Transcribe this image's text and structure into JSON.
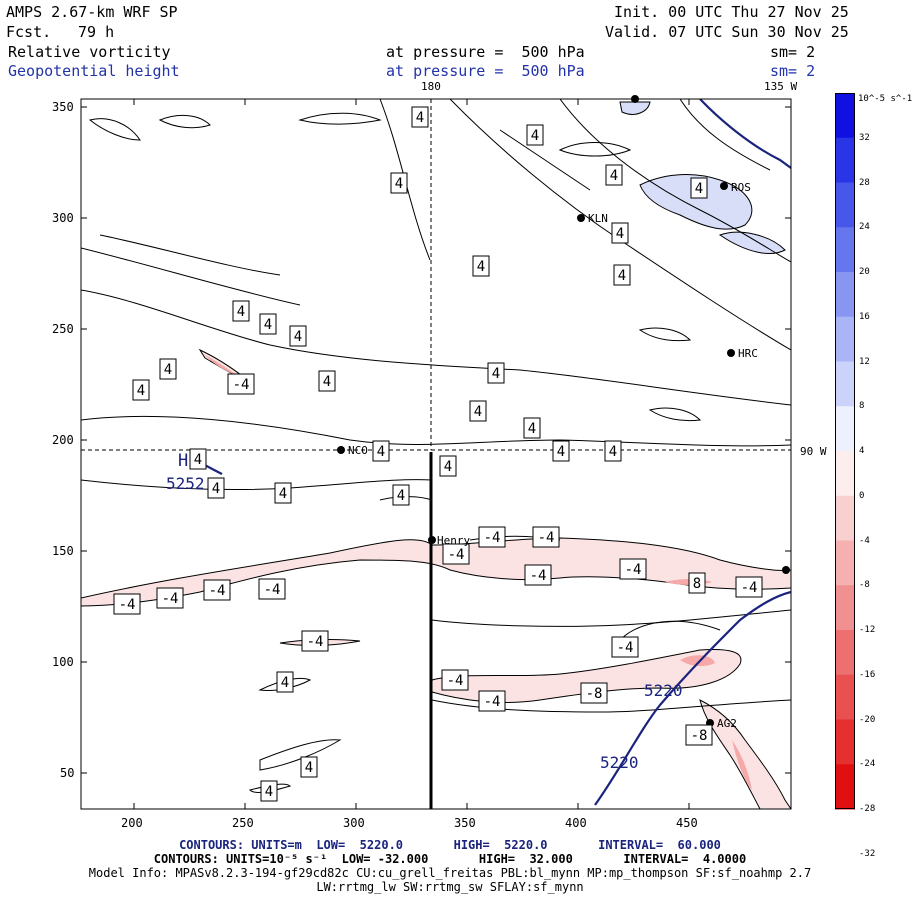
{
  "header": {
    "model": "AMPS 2.67-km WRF SP",
    "fcst_label": "Fcst.",
    "fcst_value": "79 h",
    "init": "Init. 00 UTC Thu 27 Nov 25",
    "valid": "Valid. 07 UTC Sun 30 Nov 25",
    "field1_name": "Relative vorticity",
    "field1_level": "at pressure =  500 hPa",
    "field1_sm": "sm= 2",
    "field2_name": "Geopotential height",
    "field2_level": "at pressure =  500 hPa",
    "field2_sm": "sm= 2"
  },
  "map": {
    "top_labels": [
      "180",
      "135 W"
    ],
    "right_label": "90 W",
    "x_ticks": [
      "200",
      "250",
      "300",
      "350",
      "400",
      "450"
    ],
    "y_ticks": [
      "350",
      "300",
      "250",
      "200",
      "150",
      "100",
      "50"
    ],
    "stations": [
      "KLN",
      "HRC",
      "NCO",
      "Henry",
      "AG2",
      "ROS"
    ],
    "height_labels": [
      "5252",
      "5220",
      "5220",
      "H"
    ],
    "contour_labels": [
      "4",
      "4",
      "4",
      "4",
      "4",
      "4",
      "4",
      "4",
      "4",
      "4",
      "4",
      "4",
      "4",
      "4",
      "4",
      "4",
      "4",
      "4",
      "4",
      "4",
      "4",
      "4",
      "4",
      "4",
      "4",
      "-4",
      "-4",
      "-4",
      "-4",
      "-4",
      "-4",
      "-4",
      "-4",
      "-4",
      "-4",
      "-4",
      "-4",
      "-4",
      "-4",
      "-8",
      "-8",
      "8",
      "4",
      "4",
      "4",
      "-4"
    ]
  },
  "colorbar": {
    "unit": "10^-5 s^-1",
    "labels": [
      "32",
      "28",
      "24",
      "20",
      "16",
      "12",
      "8",
      "4",
      "0",
      "-4",
      "-8",
      "-12",
      "-16",
      "-20",
      "-24",
      "-28",
      "-32"
    ],
    "colors": [
      "#1010e0",
      "#2a36e6",
      "#4657ea",
      "#6576ee",
      "#8896f2",
      "#aab5f6",
      "#ccd3fa",
      "#eef0fd",
      "#fdeeee",
      "#f9d0d0",
      "#f5b0b0",
      "#f19090",
      "#ed7070",
      "#e95050",
      "#e53030",
      "#e11010"
    ]
  },
  "footer": {
    "line1": "CONTOURS: UNITS=m  LOW=  5220.0       HIGH=  5220.0       INTERVAL=  60.000",
    "line2": "CONTOURS: UNITS=10⁻⁵ s⁻¹  LOW= -32.000       HIGH=  32.000       INTERVAL=  4.0000",
    "line3": "Model Info: MPASv8.2.3-194-gf29cd82c CU:cu_grell_freitas PBL:bl_mynn MP:mp_thompson SF:sf_noahmp 2.7",
    "line4": "LW:rrtmg_lw SW:rrtmg_sw SFLAY:sf_mynn"
  }
}
